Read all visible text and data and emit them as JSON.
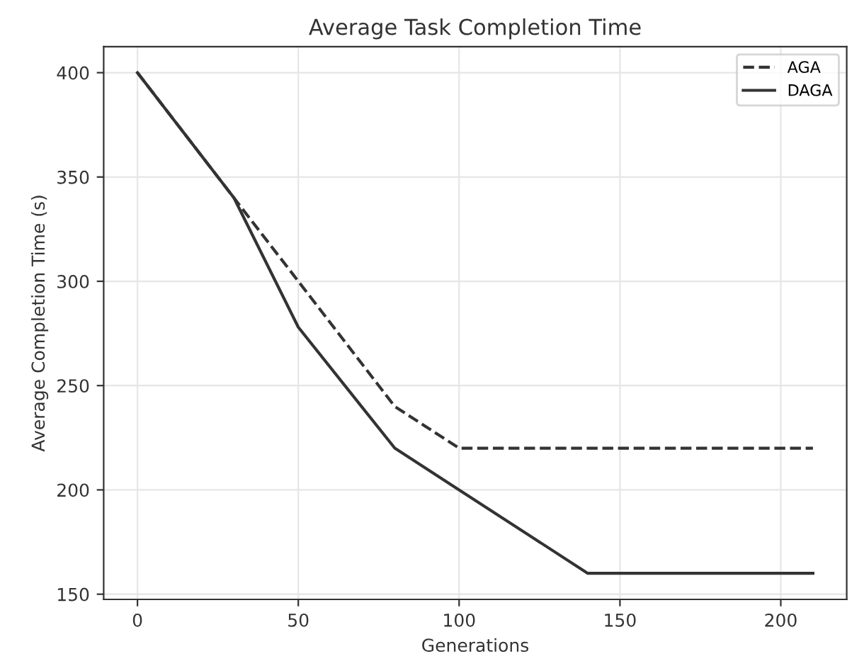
{
  "chart_data": {
    "type": "line",
    "title": "Average Task Completion Time",
    "xlabel": "Generations",
    "ylabel": "Average Completion Time (s)",
    "series": [
      {
        "name": "AGA",
        "color": "#333333",
        "line_style": "dashed",
        "x": [
          0,
          30,
          50,
          80,
          100,
          210
        ],
        "values": [
          400,
          340,
          300,
          240,
          220,
          220
        ]
      },
      {
        "name": "DAGA",
        "color": "#333333",
        "line_style": "solid",
        "x": [
          0,
          30,
          50,
          80,
          100,
          140,
          210
        ],
        "values": [
          400,
          340,
          278,
          220,
          200,
          160,
          160
        ]
      }
    ],
    "xlim": [
      -10.5,
      220.5
    ],
    "ylim": [
      147.5,
      412.5
    ],
    "xticks": [
      0,
      50,
      100,
      150,
      200
    ],
    "yticks": [
      150,
      200,
      250,
      300,
      350,
      400
    ],
    "grid": true,
    "legend": "top right",
    "marker": "none"
  }
}
